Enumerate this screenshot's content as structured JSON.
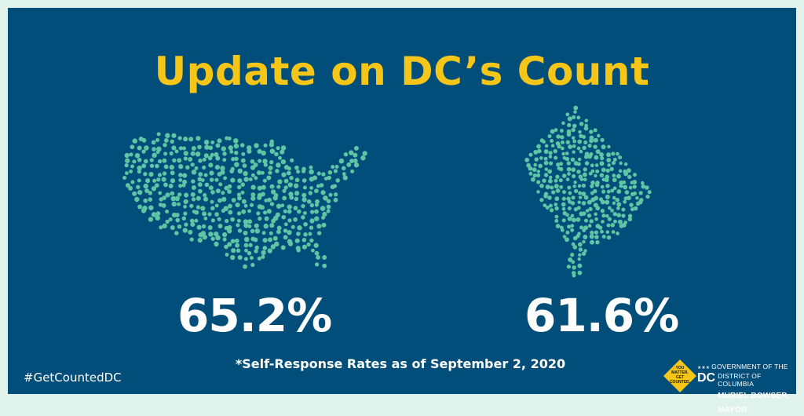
{
  "title": "Update on DC’s Count",
  "stats": {
    "us_percent": "65.2%",
    "dc_percent": "61.6%"
  },
  "footnote": "*Self-Response Rates as of September 2, 2020",
  "hashtag": "#GetCountedDC",
  "badge": {
    "text": [
      "YOU",
      "MATTER.",
      "GET",
      "COUNTED."
    ]
  },
  "government": {
    "stars": "★★★",
    "line1": "GOVERNMENT OF THE",
    "line2": "DISTRICT OF COLUMBIA",
    "dc_mark": "DC",
    "line3": "MURIEL BOWSER, MAYOR"
  },
  "colors": {
    "background": "#004e79",
    "border": "#dff2ec",
    "title": "#f5c518",
    "dots": "#5fc5a4",
    "text": "#ffffff"
  },
  "icons": {
    "us_map": "usa-dot-map-icon",
    "dc_map": "dc-dot-map-icon",
    "badge": "yellow-diamond-badge-icon"
  }
}
